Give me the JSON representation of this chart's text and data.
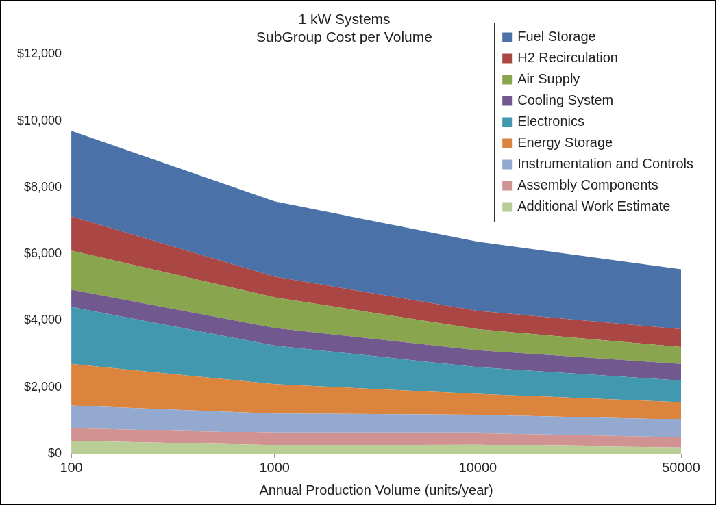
{
  "chart_data": {
    "type": "area",
    "title": "1 kW Systems\nSubGroup Cost per Volume",
    "xlabel": "Annual Production Volume (units/year)",
    "categories": [
      "100",
      "1000",
      "10000",
      "50000"
    ],
    "stacked": true,
    "ylim": [
      0,
      12000
    ],
    "yticks": [
      {
        "value": 0,
        "label": "$0"
      },
      {
        "value": 2000,
        "label": "$2,000"
      },
      {
        "value": 4000,
        "label": "$4,000"
      },
      {
        "value": 6000,
        "label": "$6,000"
      },
      {
        "value": 8000,
        "label": "$8,000"
      },
      {
        "value": 10000,
        "label": "$10,000"
      },
      {
        "value": 12000,
        "label": "$12,000"
      }
    ],
    "grid": false,
    "legend": "top right",
    "series": [
      {
        "name": "Additional Work Estimate",
        "color": "#b9cd96",
        "values": [
          390,
          260,
          270,
          190
        ]
      },
      {
        "name": "Assembly Components",
        "color": "#d19392",
        "values": [
          380,
          360,
          350,
          310
        ]
      },
      {
        "name": "Instrumentation and Controls",
        "color": "#93a9cf",
        "values": [
          680,
          590,
          550,
          530
        ]
      },
      {
        "name": "Energy Storage",
        "color": "#db843d",
        "values": [
          1250,
          880,
          630,
          520
        ]
      },
      {
        "name": "Electronics",
        "color": "#4198af",
        "values": [
          1710,
          1160,
          800,
          650
        ]
      },
      {
        "name": "Cooling System",
        "color": "#71588f",
        "values": [
          520,
          530,
          510,
          500
        ]
      },
      {
        "name": "Air Supply",
        "color": "#89a54e",
        "values": [
          1170,
          920,
          630,
          510
        ]
      },
      {
        "name": "H2 Recirculation",
        "color": "#aa4643",
        "values": [
          1030,
          620,
          550,
          530
        ]
      },
      {
        "name": "Fuel Storage",
        "color": "#4a72a8",
        "values": [
          2570,
          2260,
          2080,
          1800
        ]
      }
    ]
  }
}
